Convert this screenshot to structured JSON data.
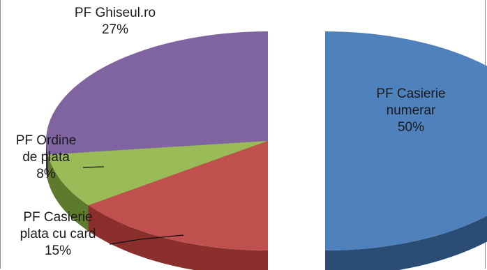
{
  "chart_data": {
    "type": "pie",
    "style": "3d-exploded",
    "title": "",
    "slices": [
      {
        "name": "PF Casierie numerar",
        "label_lines": [
          "PF Casierie",
          "numerar"
        ],
        "value": 50,
        "pct_label": "50%",
        "color": "#4f81bd",
        "side_color": "#2b4c74"
      },
      {
        "name": "PF Casierie plata cu card",
        "label_lines": [
          "PF Casierie",
          "plata cu card"
        ],
        "value": 15,
        "pct_label": "15%",
        "color": "#c0504d",
        "side_color": "#8a2f2c"
      },
      {
        "name": "PF Ordine de plata",
        "label_lines": [
          "PF Ordine",
          "de plata"
        ],
        "value": 8,
        "pct_label": "8%",
        "color": "#9bbb59",
        "side_color": "#5e7a2c"
      },
      {
        "name": "PF Ghiseul.ro",
        "label_lines": [
          "PF Ghiseul.ro"
        ],
        "value": 27,
        "pct_label": "27%",
        "color": "#8064a2",
        "side_color": "#2f2540"
      }
    ]
  }
}
